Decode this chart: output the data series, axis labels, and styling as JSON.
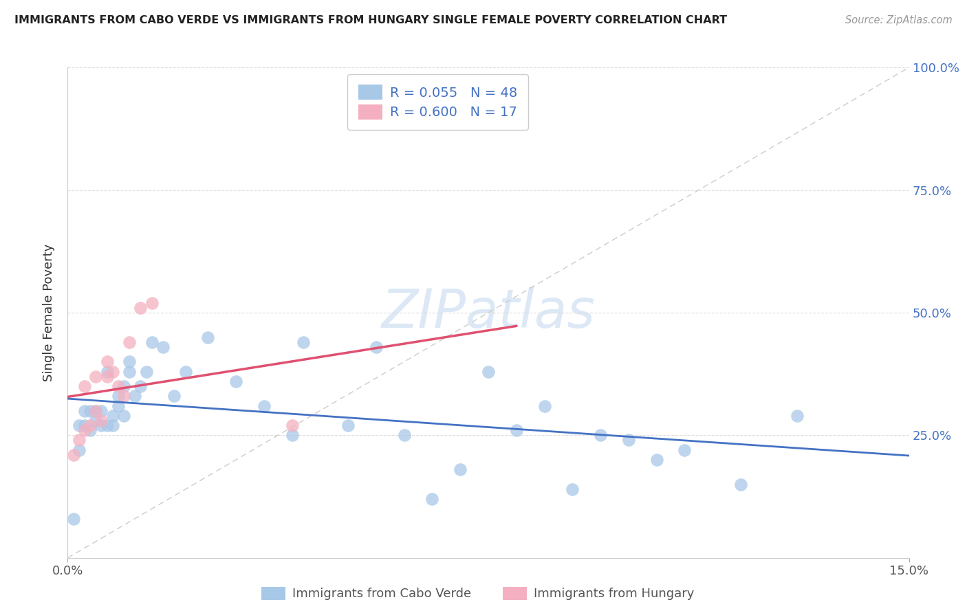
{
  "title": "IMMIGRANTS FROM CABO VERDE VS IMMIGRANTS FROM HUNGARY SINGLE FEMALE POVERTY CORRELATION CHART",
  "source": "Source: ZipAtlas.com",
  "ylabel": "Single Female Poverty",
  "legend_label1": "Immigrants from Cabo Verde",
  "legend_label2": "Immigrants from Hungary",
  "r1": 0.055,
  "n1": 48,
  "r2": 0.6,
  "n2": 17,
  "color1": "#a8c8e8",
  "color2": "#f4b0c0",
  "trendline1_color": "#4472c4",
  "trendline2_color": "#e05070",
  "refline_color": "#cccccc",
  "xlim": [
    0,
    0.15
  ],
  "ylim": [
    0,
    1.0
  ],
  "xticks": [
    0,
    0.15
  ],
  "xticklabels": [
    "0.0%",
    "15.0%"
  ],
  "yticks": [
    0.0,
    0.25,
    0.5,
    0.75,
    1.0
  ],
  "yticklabels_right": [
    "",
    "25.0%",
    "50.0%",
    "75.0%",
    "100.0%"
  ],
  "cabo_verde_x": [
    0.001,
    0.002,
    0.002,
    0.003,
    0.003,
    0.004,
    0.004,
    0.005,
    0.005,
    0.006,
    0.006,
    0.007,
    0.007,
    0.008,
    0.008,
    0.009,
    0.009,
    0.01,
    0.01,
    0.011,
    0.011,
    0.012,
    0.013,
    0.014,
    0.015,
    0.017,
    0.019,
    0.021,
    0.025,
    0.03,
    0.035,
    0.04,
    0.042,
    0.05,
    0.055,
    0.06,
    0.065,
    0.07,
    0.075,
    0.08,
    0.085,
    0.09,
    0.095,
    0.1,
    0.105,
    0.11,
    0.12,
    0.13
  ],
  "cabo_verde_y": [
    0.08,
    0.22,
    0.27,
    0.3,
    0.27,
    0.26,
    0.3,
    0.28,
    0.3,
    0.27,
    0.3,
    0.38,
    0.27,
    0.27,
    0.29,
    0.31,
    0.33,
    0.35,
    0.29,
    0.38,
    0.4,
    0.33,
    0.35,
    0.38,
    0.44,
    0.43,
    0.33,
    0.38,
    0.45,
    0.36,
    0.31,
    0.25,
    0.44,
    0.27,
    0.43,
    0.25,
    0.12,
    0.18,
    0.38,
    0.26,
    0.31,
    0.14,
    0.25,
    0.24,
    0.2,
    0.22,
    0.15,
    0.29
  ],
  "hungary_x": [
    0.001,
    0.002,
    0.003,
    0.003,
    0.004,
    0.005,
    0.005,
    0.006,
    0.007,
    0.007,
    0.008,
    0.009,
    0.01,
    0.011,
    0.013,
    0.015,
    0.04
  ],
  "hungary_y": [
    0.21,
    0.24,
    0.26,
    0.35,
    0.27,
    0.3,
    0.37,
    0.28,
    0.37,
    0.4,
    0.38,
    0.35,
    0.33,
    0.44,
    0.51,
    0.52,
    0.27
  ],
  "background_color": "#ffffff",
  "grid_color": "#dddddd",
  "watermark_text": "ZIPatlas",
  "watermark_color": "#dce8f5"
}
